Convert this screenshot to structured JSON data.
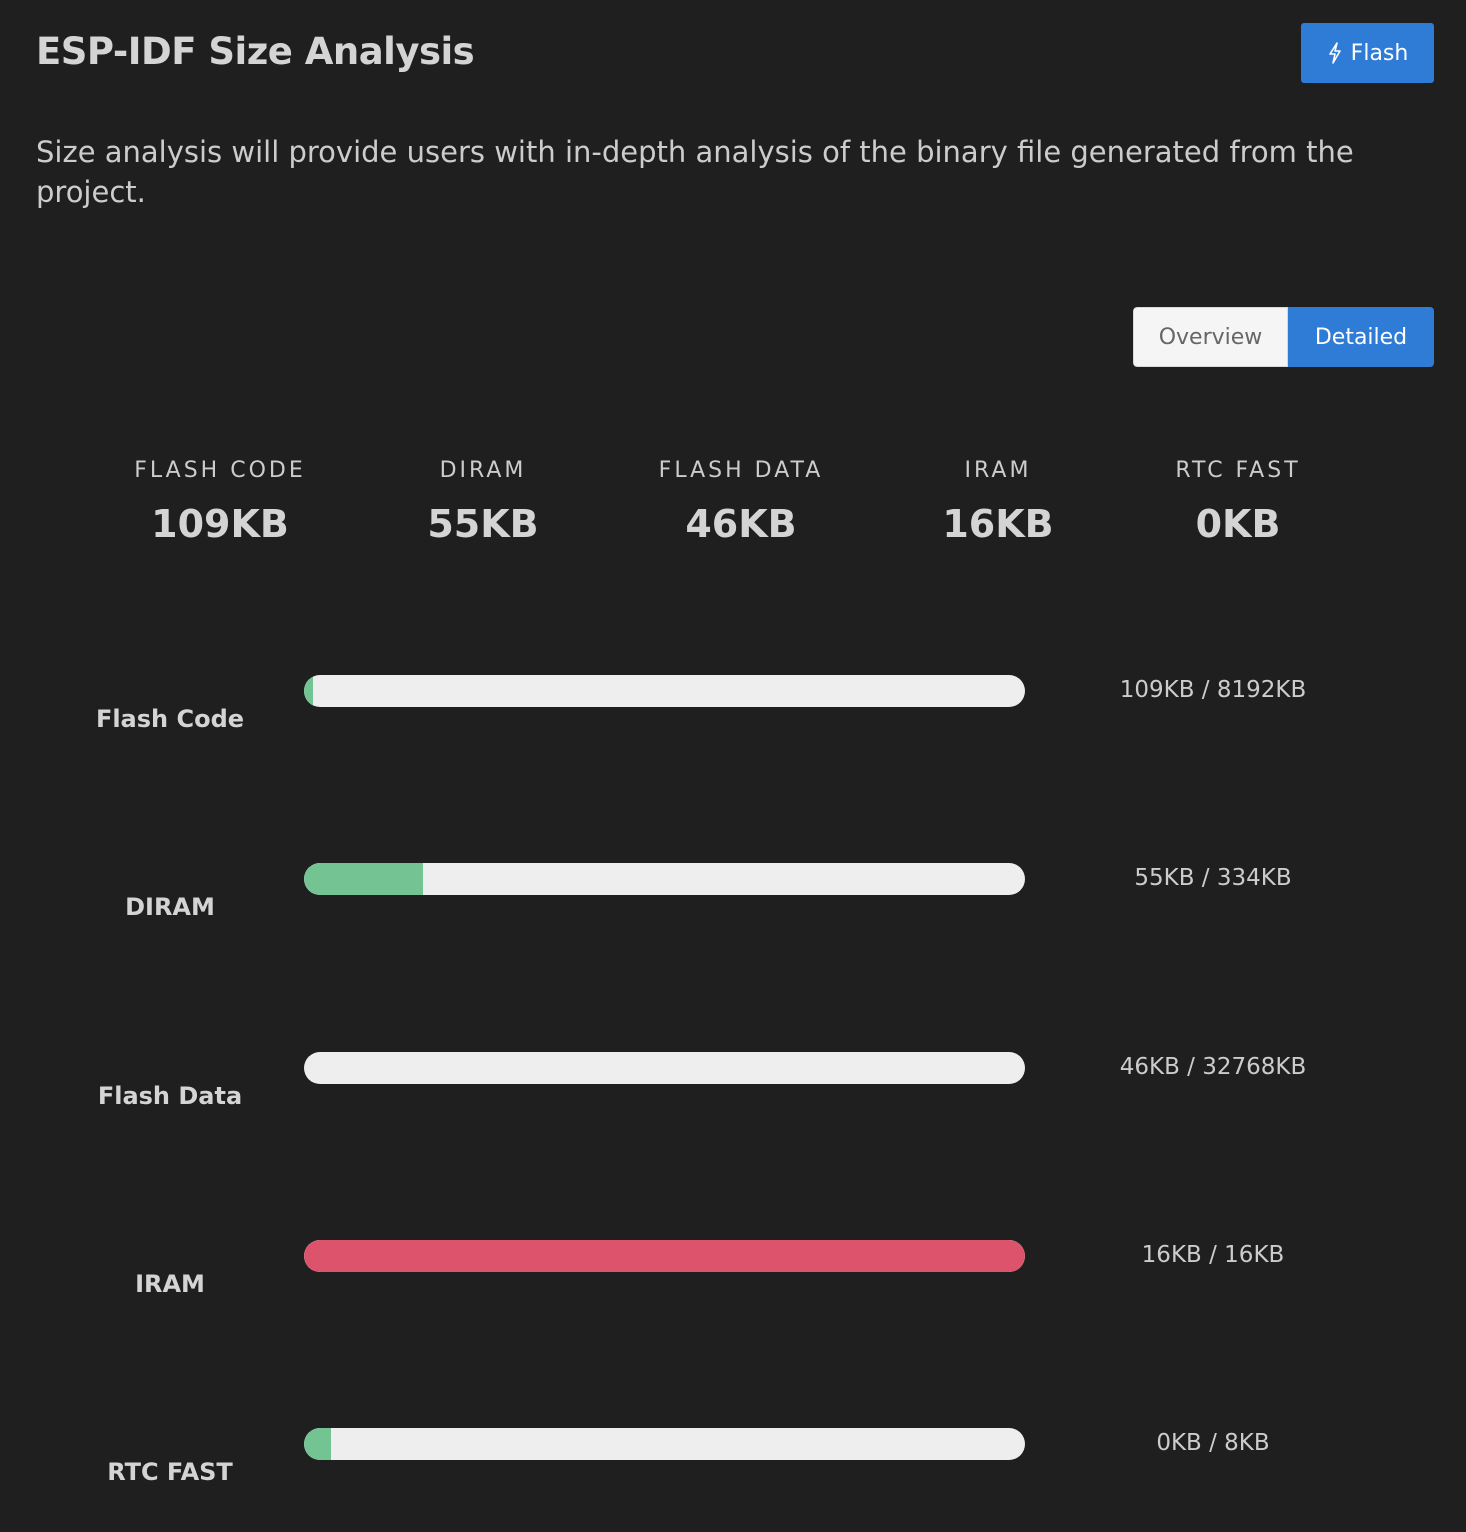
{
  "header": {
    "title": "ESP-IDF Size Analysis",
    "flash_button_label": "Flash",
    "description": "Size analysis will provide users with in-depth analysis of the binary file generated from the project."
  },
  "view_toggle": {
    "options": [
      "Overview",
      "Detailed"
    ],
    "selected": "Detailed"
  },
  "summary": [
    {
      "label": "FLASH CODE",
      "value": "109KB"
    },
    {
      "label": "DIRAM",
      "value": "55KB"
    },
    {
      "label": "FLASH DATA",
      "value": "46KB"
    },
    {
      "label": "IRAM",
      "value": "16KB"
    },
    {
      "label": "RTC FAST",
      "value": "0KB"
    }
  ],
  "usage": [
    {
      "label": "Flash Code",
      "usage": "109KB / 8192KB",
      "used_fraction": 0.013,
      "color": "#74c493"
    },
    {
      "label": "DIRAM",
      "usage": "55KB / 334KB",
      "used_fraction": 0.165,
      "color": "#74c493"
    },
    {
      "label": "Flash Data",
      "usage": "46KB / 32768KB",
      "used_fraction": 0.0014,
      "color": "#74c493"
    },
    {
      "label": "IRAM",
      "usage": "16KB / 16KB",
      "used_fraction": 1.0,
      "color": "#dc536b"
    },
    {
      "label": "RTC FAST",
      "usage": "0KB / 8KB",
      "used_fraction": 0.0,
      "color": "#74c493"
    }
  ]
}
